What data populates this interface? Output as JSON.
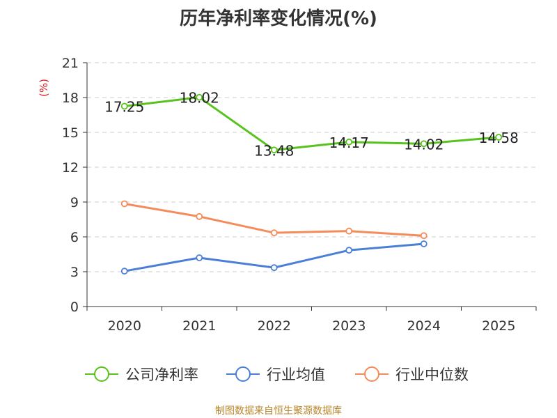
{
  "chart_data": {
    "type": "line",
    "title": "历年净利率变化情况(%)",
    "ylabel": "(%)",
    "xlabel": "",
    "ylim": [
      0,
      21
    ],
    "yticks": [
      0,
      3,
      6,
      9,
      12,
      15,
      18,
      21
    ],
    "grid": true,
    "legend_position": "bottom",
    "categories": [
      "2020",
      "2021",
      "2022",
      "2023",
      "2024",
      "2025"
    ],
    "series": [
      {
        "name": "公司净利率",
        "color": "#58c21e",
        "values": [
          17.25,
          18.02,
          13.48,
          14.17,
          14.02,
          14.58
        ],
        "labels": [
          "17.25",
          "18.02",
          "13.48",
          "14.17",
          "14.02",
          "14.58"
        ]
      },
      {
        "name": "行业均值",
        "color": "#4a7fd8",
        "values": [
          3.05,
          4.2,
          3.35,
          4.85,
          5.4,
          null
        ]
      },
      {
        "name": "行业中位数",
        "color": "#f58b5a",
        "values": [
          8.85,
          7.75,
          6.35,
          6.5,
          6.1,
          null
        ]
      }
    ]
  },
  "source_text": "制图数据来自恒生聚源数据库"
}
